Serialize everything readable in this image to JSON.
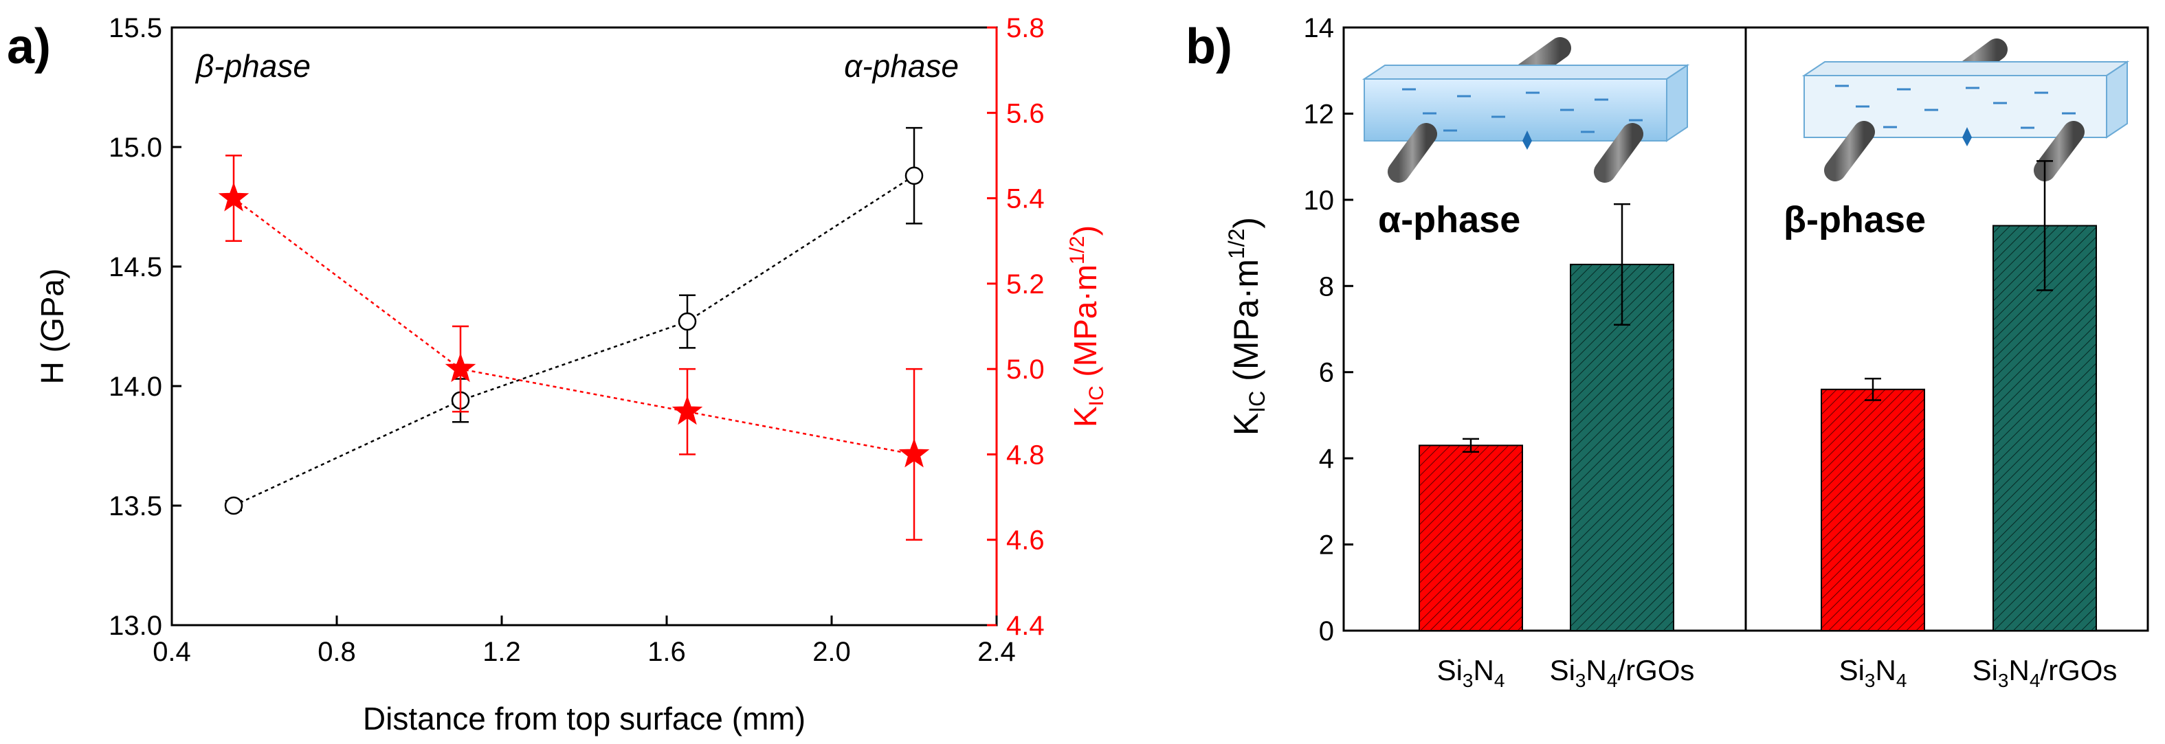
{
  "chart_data": [
    {
      "panel_label": "a)",
      "type": "line",
      "xlabel": "Distance from top surface (mm)",
      "xlim": [
        0.4,
        2.4
      ],
      "xticks": [
        "0.4",
        "0.8",
        "1.2",
        "1.6",
        "2.0",
        "2.4"
      ],
      "xtick_values": [
        0.4,
        0.8,
        1.2,
        1.6,
        2.0,
        2.4
      ],
      "y_left": {
        "label_main": "H (GPa)",
        "lim": [
          13.0,
          15.5
        ],
        "ticks": [
          "13.0",
          "13.5",
          "14.0",
          "14.5",
          "15.0",
          "15.5"
        ],
        "tick_values": [
          13.0,
          13.5,
          14.0,
          14.5,
          15.0,
          15.5
        ]
      },
      "y_right": {
        "label_main": "K",
        "label_sub": "IC",
        "label_units": " (MPa·m",
        "label_sup": "1/2",
        "label_close": ")",
        "lim": [
          4.4,
          5.8
        ],
        "ticks": [
          "4.4",
          "4.6",
          "4.8",
          "5.0",
          "5.2",
          "5.4",
          "5.6",
          "5.8"
        ],
        "tick_values": [
          4.4,
          4.6,
          4.8,
          5.0,
          5.2,
          5.4,
          5.6,
          5.8
        ]
      },
      "annotations": [
        "β-phase",
        "α-phase"
      ],
      "series": [
        {
          "name": "H",
          "axis": "left",
          "marker": "open-circle",
          "color": "#000000",
          "x": [
            0.55,
            1.1,
            1.65,
            2.2
          ],
          "y": [
            13.5,
            13.94,
            14.27,
            14.88
          ],
          "err": [
            0.02,
            0.09,
            0.11,
            0.2
          ]
        },
        {
          "name": "KIC",
          "axis": "right",
          "marker": "star",
          "color": "#ff0000",
          "x": [
            0.55,
            1.1,
            1.65,
            2.2
          ],
          "y": [
            5.4,
            5.0,
            4.9,
            4.8
          ],
          "err": [
            0.1,
            0.1,
            0.1,
            0.2
          ]
        }
      ]
    },
    {
      "panel_label": "b)",
      "type": "bar",
      "ylabel_main": "K",
      "ylabel_sub": "IC",
      "ylabel_units": " (MPa·m",
      "ylabel_sup": "1/2",
      "ylabel_close": ")",
      "ylim": [
        0,
        14
      ],
      "yticks": [
        "0",
        "2",
        "4",
        "6",
        "8",
        "10",
        "12",
        "14"
      ],
      "ytick_values": [
        0,
        2,
        4,
        6,
        8,
        10,
        12,
        14
      ],
      "groups": [
        "α-phase",
        "β-phase"
      ],
      "bars": [
        {
          "group": "α-phase",
          "label_a": "Si",
          "sub_a": "3",
          "label_b": "N",
          "sub_b": "4",
          "label_c": "",
          "value": 4.3,
          "err": 0.15,
          "color": "#ff0000"
        },
        {
          "group": "α-phase",
          "label_a": "Si",
          "sub_a": "3",
          "label_b": "N",
          "sub_b": "4",
          "label_c": "/rGOs",
          "value": 8.5,
          "err": 1.4,
          "color": "#1a6b60"
        },
        {
          "group": "β-phase",
          "label_a": "Si",
          "sub_a": "3",
          "label_b": "N",
          "sub_b": "4",
          "label_c": "",
          "value": 5.6,
          "err": 0.25,
          "color": "#ff0000"
        },
        {
          "group": "β-phase",
          "label_a": "Si",
          "sub_a": "3",
          "label_b": "N",
          "sub_b": "4",
          "label_c": "/rGOs",
          "value": 9.4,
          "err": 1.5,
          "color": "#1a6b60"
        }
      ]
    }
  ]
}
